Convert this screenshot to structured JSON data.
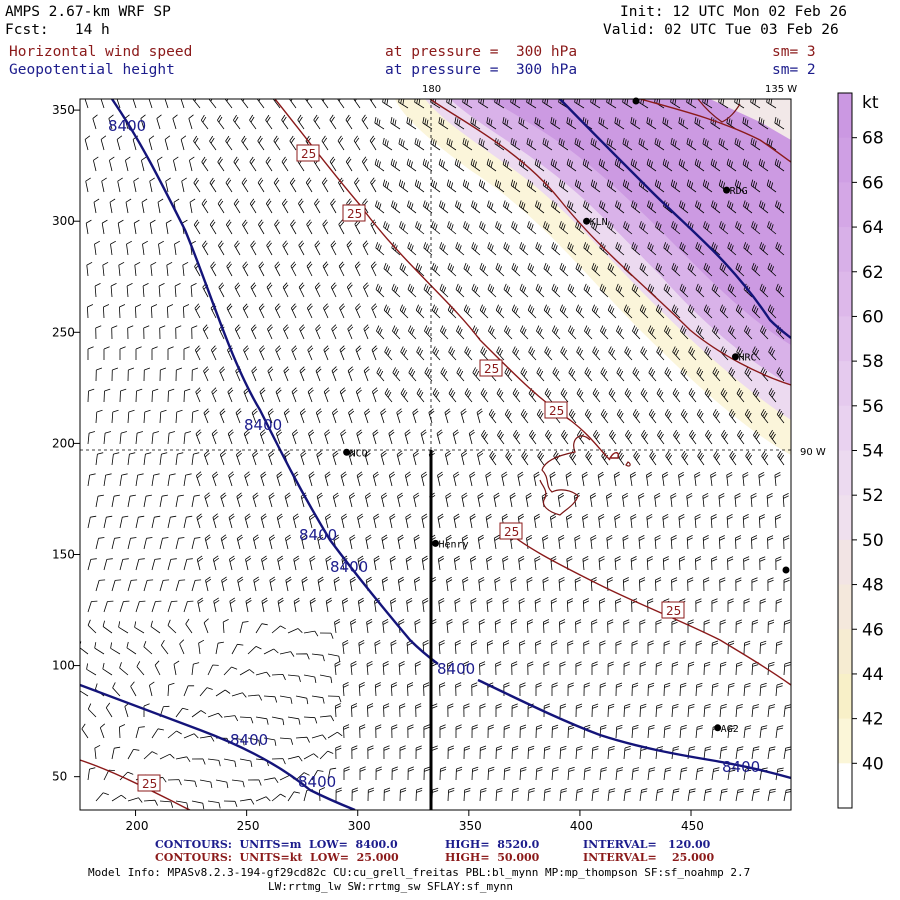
{
  "header": {
    "title": "AMPS 2.67-km WRF SP",
    "fcst": "Fcst:   14 h",
    "init": "Init: 12 UTC Mon 02 Feb 26",
    "valid": "Valid: 02 UTC Tue 03 Feb 26",
    "field1_name": "Horizontal wind speed",
    "field1_level": "at pressure =  300 hPa",
    "field1_sm": "sm= 3",
    "field2_name": "Geopotential height",
    "field2_level": "at pressure =  300 hPa",
    "field2_sm": "sm= 2"
  },
  "map": {
    "x_ticks": [
      "200",
      "250",
      "300",
      "350",
      "400",
      "450"
    ],
    "y_ticks": [
      "350",
      "300",
      "250",
      "200",
      "150",
      "100",
      "50"
    ],
    "lon_labels": [
      "180",
      "135 W",
      "90 W"
    ],
    "stations": [
      {
        "name": "RDG",
        "x": 466,
        "y": 314
      },
      {
        "name": "KLN",
        "x": 403,
        "y": 300
      },
      {
        "name": "HRC",
        "x": 470,
        "y": 239
      },
      {
        "name": "NCO",
        "x": 295,
        "y": 196
      },
      {
        "name": "Henry",
        "x": 335,
        "y": 155
      },
      {
        "name": "AG2",
        "x": 462,
        "y": 72
      }
    ],
    "height_contour_label": "8400",
    "speed_contour_label": "25"
  },
  "colorbar": {
    "unit": "kt",
    "labels": [
      "68",
      "66",
      "64",
      "62",
      "60",
      "58",
      "56",
      "54",
      "52",
      "50",
      "48",
      "46",
      "44",
      "42",
      "40"
    ],
    "colors": [
      "#cb98e2",
      "#cf9fe4",
      "#d4a7e6",
      "#d8b0e8",
      "#ddb8ea",
      "#e1c1ec",
      "#e5caee",
      "#e9d2f0",
      "#ecdaf0",
      "#efe0ee",
      "#f2e4e4",
      "#f4e8dc",
      "#f6ecd2",
      "#f8f0c8",
      "#fbf6d8",
      "#ffffff"
    ]
  },
  "contour_info": {
    "line1_label": "CONTOURS:  UNITS=m  LOW=  8400.0",
    "line1_high": "HIGH=  8520.0",
    "line1_int": "INTERVAL=   120.00",
    "line2_label": "CONTOURS:  UNITS=kt  LOW=  25.000",
    "line2_high": "HIGH=  50.000",
    "line2_int": "INTERVAL=    25.000"
  },
  "model_info": {
    "line1": "Model Info: MPASv8.2.3-194-gf29cd82c CU:cu_grell_freitas PBL:bl_mynn MP:mp_thompson SF:sf_noahmp 2.7",
    "line2": "LW:rrtmg_lw SW:rrtmg_sw SFLAY:sf_mynn"
  }
}
